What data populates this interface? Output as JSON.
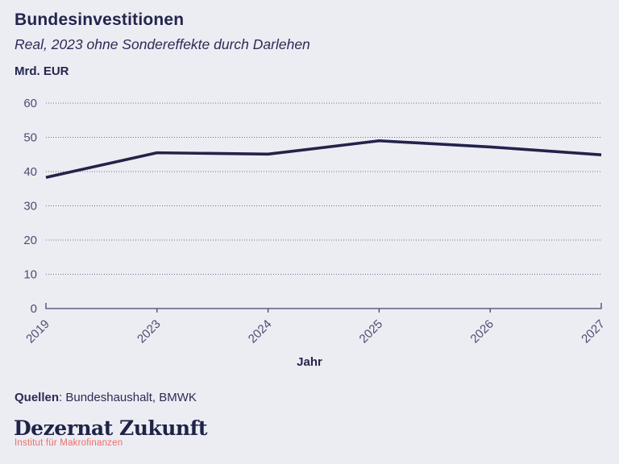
{
  "header": {
    "title": "Bundesinvestitionen",
    "subtitle": "Real, 2023 ohne Sondereffekte durch Darlehen",
    "unit_label": "Mrd. EUR"
  },
  "chart_data": {
    "type": "line",
    "categories": [
      "2019",
      "2023",
      "2024",
      "2025",
      "2026",
      "2027"
    ],
    "values": [
      38.3,
      45.5,
      45.1,
      49.0,
      47.2,
      44.9
    ],
    "title": "Bundesinvestitionen",
    "subtitle": "Real, 2023 ohne Sondereffekte durch Darlehen",
    "xlabel": "Jahr",
    "ylabel": "Mrd. EUR",
    "ylim": [
      0,
      60
    ],
    "yticks": [
      0,
      10,
      20,
      30,
      40,
      50,
      60
    ],
    "grid": "horizontal-dotted",
    "legend": "none",
    "x_tick_rotation": -45
  },
  "footer": {
    "sources_label": "Quellen",
    "sources_rest": ": Bundeshaushalt, BMWK",
    "logo_name": "Dezernat Zukunft",
    "logo_subtitle": "Institut für Makrofinanzen"
  },
  "colors": {
    "background": "#ECECF3",
    "line": "#22234A",
    "grid": "#707190",
    "axis": "#44466A",
    "axis_text": "#4C4E71",
    "heading_text": "#23254D",
    "logo_navy": "#1F2347",
    "logo_red": "#EF6E67"
  }
}
